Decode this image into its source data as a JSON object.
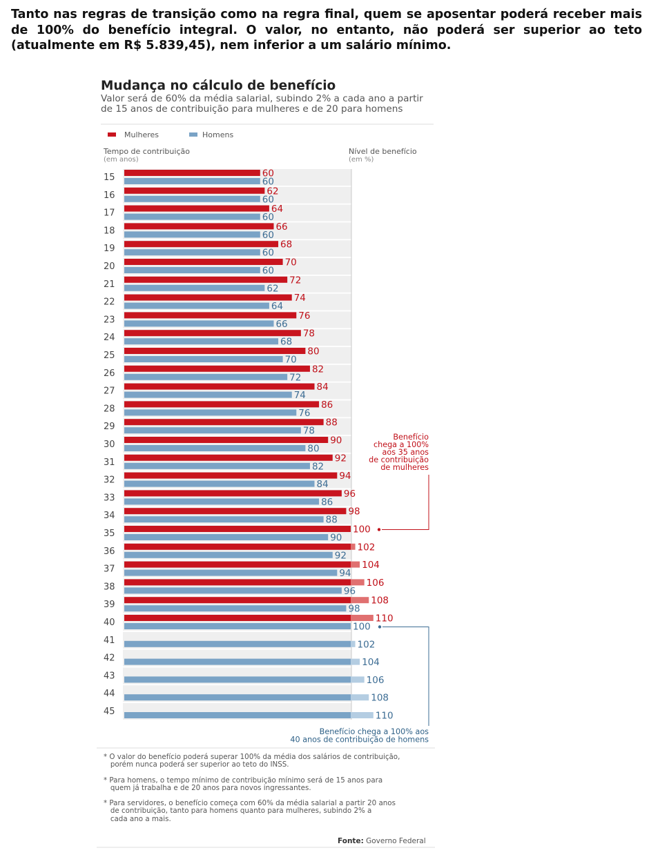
{
  "intro_text": "Tanto nas regras de transição como na regra final, quem se aposentar poderá receber mais de 100% do benefício integral. O valor, no entanto, não poderá ser superior ao teto (atualmente em R$ 5.839,45), nem inferior a um salário mínimo.",
  "chart_data": {
    "type": "bar",
    "orientation": "horizontal",
    "title": "Mudança no cálculo de benefício",
    "subtitle": "Valor será de 60% da média salarial, subindo 2% a cada ano a partir de 15 anos de contribuição para mulheres e de 20 para homens",
    "ylabel": "Tempo de contribuição",
    "ylabel_unit": "(em anos)",
    "xlabel": "Nível de benefício",
    "xlabel_unit": "(em %)",
    "reference_line": 100,
    "categories": [
      15,
      16,
      17,
      18,
      19,
      20,
      21,
      22,
      23,
      24,
      25,
      26,
      27,
      28,
      29,
      30,
      31,
      32,
      33,
      34,
      35,
      36,
      37,
      38,
      39,
      40,
      41,
      42,
      43,
      44,
      45
    ],
    "series": [
      {
        "name": "Mulheres",
        "color": "#c8141e",
        "color_above": "#e07070",
        "values": [
          60,
          62,
          64,
          66,
          68,
          70,
          72,
          74,
          76,
          78,
          80,
          82,
          84,
          86,
          88,
          90,
          92,
          94,
          96,
          98,
          100,
          102,
          104,
          106,
          108,
          110,
          null,
          null,
          null,
          null,
          null
        ]
      },
      {
        "name": "Homens",
        "color": "#7aa3c6",
        "color_above": "#b4cde2",
        "values": [
          60,
          60,
          60,
          60,
          60,
          60,
          62,
          64,
          66,
          68,
          70,
          72,
          74,
          76,
          78,
          80,
          82,
          84,
          86,
          88,
          90,
          92,
          94,
          96,
          98,
          100,
          102,
          104,
          106,
          108,
          110
        ]
      }
    ],
    "annotations": [
      {
        "text": [
          "Benefício",
          "chega a 100%",
          "aos 35 anos",
          "de contribuição",
          "de mulheres"
        ],
        "series": "Mulheres",
        "category": 35
      },
      {
        "text": [
          "Benefício chega a 100% aos",
          "40 anos de contribuição de homens"
        ],
        "series": "Homens",
        "category": 40
      }
    ],
    "legend_position": "top-left"
  },
  "notes": [
    "* O valor do benefício poderá superar 100% da média dos salários de contribuição,\n   porém nunca poderá ser superior ao teto do INSS.",
    "* Para homens, o tempo mínimo de contribuição mínimo será de 15 anos para\n   quem já trabalha e de 20 anos para novos ingressantes.",
    "* Para servidores, o benefício começa com 60% da média salarial a partir 20 anos\n   de contribuição, tanto para homens quanto para mulheres, subindo 2% a\n   cada ano a mais."
  ],
  "source_label": "Fonte:",
  "source_value": "Governo Federal"
}
